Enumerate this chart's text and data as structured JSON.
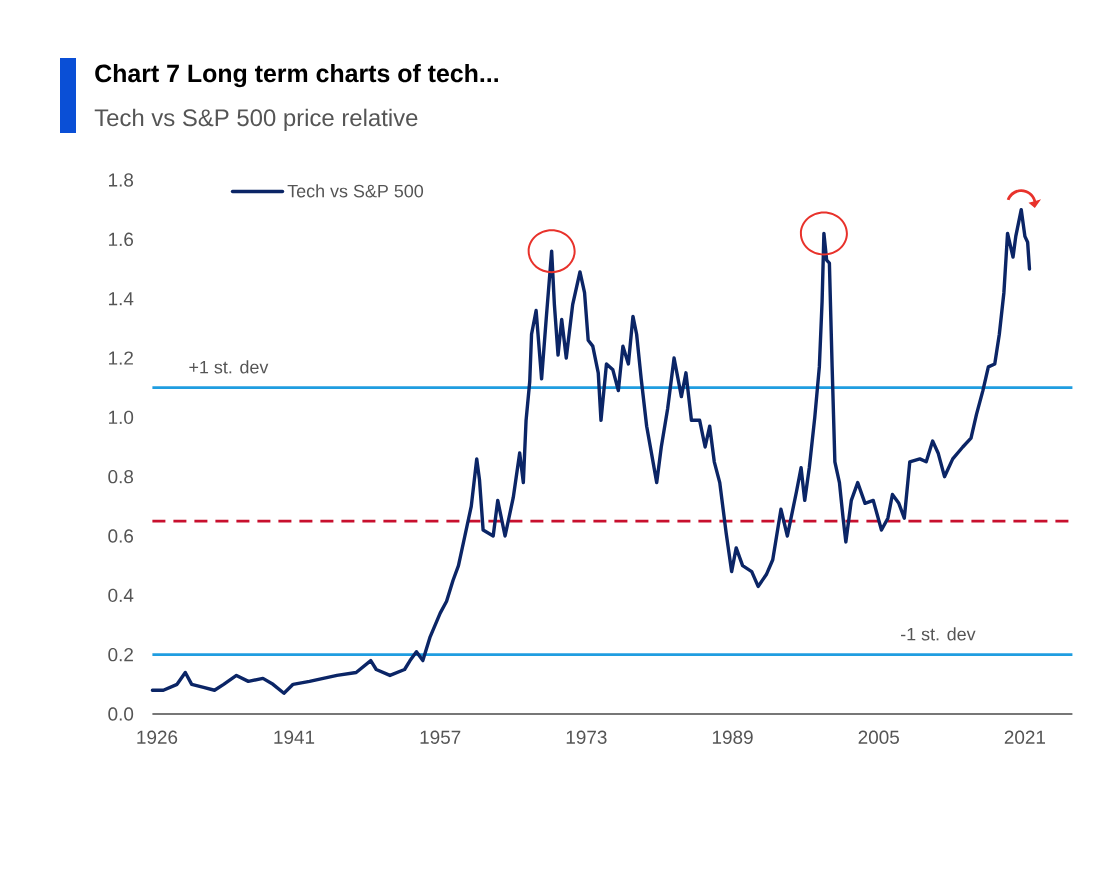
{
  "chart_data": {
    "type": "line",
    "title": "Chart 7 Long term charts of tech...",
    "subtitle": "Tech vs S&P 500 price relative",
    "x": [
      1925.5,
      1926.7,
      1928.2,
      1929.1,
      1929.8,
      1931.1,
      1932.3,
      1933.3,
      1934.7,
      1936.0,
      1937.6,
      1938.7,
      1939.9,
      1940.9,
      1942.7,
      1944.2,
      1945.7,
      1947.8,
      1949.4,
      1950.0,
      1951.5,
      1953.1,
      1953.7,
      1954.4,
      1955.1,
      1955.9,
      1957.0,
      1957.7,
      1958.4,
      1959.0,
      1959.7,
      1960.4,
      1961.0,
      1961.3,
      1961.7,
      1962.8,
      1963.3,
      1964.1,
      1965.0,
      1965.7,
      1966.1,
      1966.4,
      1966.8,
      1967.0,
      1967.5,
      1968.1,
      1968.6,
      1969.2,
      1969.5,
      1969.9,
      1970.3,
      1970.8,
      1971.5,
      1972.3,
      1972.8,
      1973.2,
      1973.7,
      1974.3,
      1974.6,
      1975.2,
      1975.9,
      1976.5,
      1977.0,
      1977.6,
      1978.1,
      1978.5,
      1979.0,
      1979.6,
      1980.7,
      1981.2,
      1981.9,
      1982.6,
      1983.4,
      1983.9,
      1984.5,
      1985.4,
      1986.0,
      1986.5,
      1987.0,
      1987.6,
      1988.3,
      1988.9,
      1989.4,
      1990.1,
      1991.1,
      1991.8,
      1992.7,
      1993.4,
      1994.3,
      1995.0,
      1996.0,
      1996.5,
      1996.9,
      1997.4,
      1998.0,
      1998.5,
      1998.8,
      1999.0,
      1999.3,
      1999.6,
      1999.9,
      2000.2,
      2000.7,
      2001.1,
      2001.4,
      2002.0,
      2002.7,
      2003.5,
      2004.4,
      2005.3,
      2006.0,
      2006.5,
      2007.2,
      2007.8,
      2008.4,
      2009.5,
      2010.2,
      2010.9,
      2011.5,
      2012.2,
      2013.1,
      2014.2,
      2015.1,
      2015.7,
      2016.4,
      2017.0,
      2017.7,
      2018.2,
      2018.7,
      2019.1,
      2019.7,
      2020.0,
      2020.6,
      2021.0,
      2021.3,
      2021.5
    ],
    "series": [
      {
        "name": "Tech vs S&P 500",
        "color": "#0b2566",
        "values": [
          0.08,
          0.08,
          0.1,
          0.14,
          0.1,
          0.09,
          0.08,
          0.1,
          0.13,
          0.11,
          0.12,
          0.1,
          0.07,
          0.1,
          0.11,
          0.12,
          0.13,
          0.14,
          0.18,
          0.15,
          0.13,
          0.15,
          0.18,
          0.21,
          0.18,
          0.26,
          0.34,
          0.38,
          0.45,
          0.5,
          0.6,
          0.7,
          0.86,
          0.79,
          0.62,
          0.6,
          0.72,
          0.6,
          0.73,
          0.88,
          0.78,
          0.99,
          1.12,
          1.28,
          1.36,
          1.13,
          1.33,
          1.56,
          1.38,
          1.21,
          1.33,
          1.2,
          1.38,
          1.49,
          1.42,
          1.26,
          1.24,
          1.15,
          0.99,
          1.18,
          1.16,
          1.09,
          1.24,
          1.18,
          1.34,
          1.28,
          1.13,
          0.97,
          0.78,
          0.9,
          1.03,
          1.2,
          1.07,
          1.15,
          0.99,
          0.99,
          0.9,
          0.97,
          0.85,
          0.78,
          0.61,
          0.48,
          0.56,
          0.5,
          0.48,
          0.43,
          0.47,
          0.52,
          0.69,
          0.6,
          0.75,
          0.83,
          0.72,
          0.83,
          1.0,
          1.17,
          1.39,
          1.62,
          1.53,
          1.52,
          1.17,
          0.85,
          0.78,
          0.66,
          0.58,
          0.72,
          0.78,
          0.71,
          0.72,
          0.62,
          0.66,
          0.74,
          0.71,
          0.66,
          0.85,
          0.86,
          0.85,
          0.92,
          0.88,
          0.8,
          0.86,
          0.9,
          0.93,
          1.01,
          1.09,
          1.17,
          1.18,
          1.28,
          1.42,
          1.62,
          1.54,
          1.61,
          1.7,
          1.61,
          1.59,
          1.5
        ]
      }
    ],
    "xlim": [
      1925.5,
      2026.2
    ],
    "xticks": [
      1926,
      1941,
      1957,
      1973,
      1989,
      2005,
      2021
    ],
    "ylim": [
      0,
      1.8
    ],
    "yticks": [
      {
        "value": 0,
        "label": "0.0"
      },
      0.2,
      0.4,
      0.6,
      0.8,
      {
        "value": 1,
        "label": "1.0"
      },
      1.2,
      1.4,
      1.6,
      1.8
    ],
    "ref_lines": [
      {
        "axis": "y",
        "value": 1.1,
        "label": "+1 st. dev",
        "color": "#1f9de0"
      },
      {
        "axis": "y",
        "value": 0.65,
        "color": "#c8102e",
        "line_style": "dashed"
      },
      {
        "axis": "y",
        "value": 0.2,
        "label": "-1 st. dev",
        "color": "#1f9de0"
      }
    ],
    "legend": "top left"
  }
}
